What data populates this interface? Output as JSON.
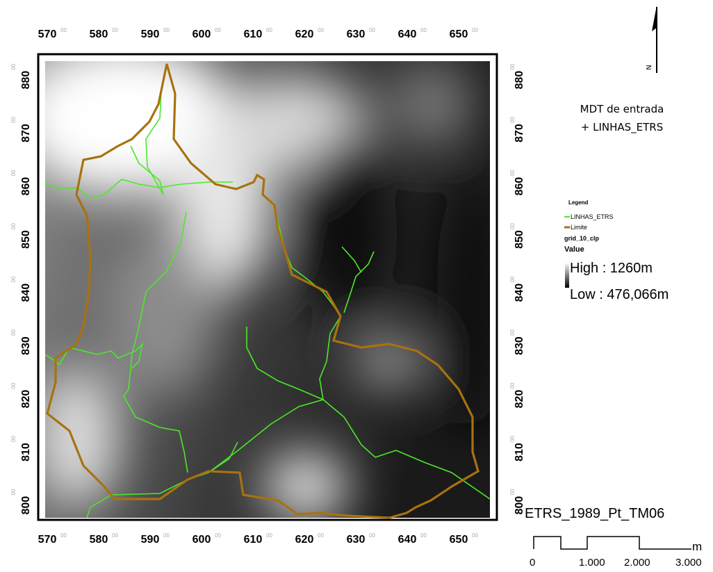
{
  "map": {
    "title": [
      "MDT de entrada",
      "+ LINHAS_ETRS"
    ],
    "north": "N",
    "x_labels": [
      "570",
      "580",
      "590",
      "600",
      "610",
      "620",
      "630",
      "640",
      "650"
    ],
    "y_labels": [
      "880",
      "870",
      "860",
      "850",
      "840",
      "830",
      "820",
      "810",
      "800"
    ],
    "label_suffix": "00",
    "legend": {
      "heading": "Legend",
      "lines": "LINHAS_ETRS",
      "boundary": "Limite",
      "raster": "grid_10_clp",
      "value": "Value",
      "high": "High : 1260m",
      "low": "Low : 476,066m"
    },
    "scale": {
      "crs": "ETRS_1989_Pt_TM06",
      "labels": [
        "0",
        "1.000",
        "2.000",
        "3.000"
      ],
      "unit": "m"
    }
  }
}
